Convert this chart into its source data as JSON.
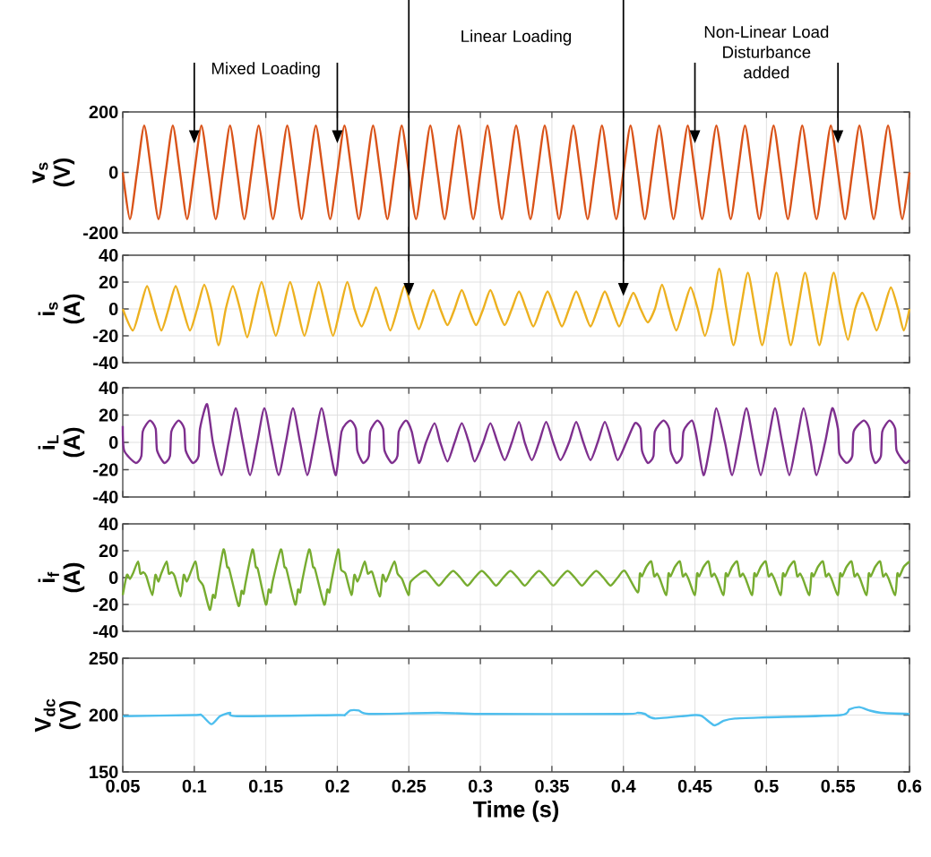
{
  "chart_data": [
    {
      "type": "line",
      "ylabel": "v$_{s}$ (V)",
      "xlim": [
        0.05,
        0.6
      ],
      "ylim": [
        -200,
        200
      ],
      "yticks": [
        -200,
        0,
        200
      ],
      "xticks": [
        0.05,
        0.1,
        0.15,
        0.2,
        0.25,
        0.3,
        0.35,
        0.4,
        0.45,
        0.5,
        0.55,
        0.6
      ],
      "grid": true,
      "tick_labels": "y",
      "series": [
        {
          "color": "#d95319",
          "x": [
            0.05,
            0.055,
            0.06,
            0.065,
            0.07,
            0.075,
            0.08,
            0.085,
            0.09,
            0.095,
            0.1,
            0.105,
            0.11,
            0.115,
            0.12,
            0.125,
            0.13,
            0.135,
            0.14,
            0.145,
            0.15,
            0.155,
            0.16,
            0.165,
            0.17,
            0.175,
            0.18,
            0.185,
            0.19,
            0.195,
            0.2,
            0.205,
            0.21,
            0.215,
            0.22,
            0.225,
            0.23,
            0.235,
            0.24,
            0.245,
            0.25,
            0.255,
            0.26,
            0.265,
            0.27,
            0.275,
            0.28,
            0.285,
            0.29,
            0.295,
            0.3,
            0.305,
            0.31,
            0.315,
            0.32,
            0.325,
            0.33,
            0.335,
            0.34,
            0.345,
            0.35,
            0.355,
            0.36,
            0.365,
            0.37,
            0.375,
            0.38,
            0.385,
            0.39,
            0.395,
            0.4,
            0.405,
            0.41,
            0.415,
            0.42,
            0.425,
            0.43,
            0.435,
            0.44,
            0.445,
            0.45,
            0.455,
            0.46,
            0.465,
            0.47,
            0.475,
            0.48,
            0.485,
            0.49,
            0.495,
            0.5,
            0.505,
            0.51,
            0.515,
            0.52,
            0.525,
            0.53,
            0.535,
            0.54,
            0.545,
            0.55,
            0.555,
            0.56,
            0.565,
            0.57,
            0.575,
            0.58,
            0.585,
            0.59,
            0.595,
            0.6
          ],
          "values": [
            0,
            -155,
            0,
            155,
            0,
            -155,
            0,
            155,
            0,
            -155,
            0,
            155,
            0,
            -155,
            0,
            155,
            0,
            -155,
            0,
            155,
            0,
            -155,
            0,
            155,
            0,
            -155,
            0,
            155,
            0,
            -155,
            0,
            155,
            0,
            -155,
            0,
            155,
            0,
            -155,
            0,
            155,
            0,
            -155,
            0,
            155,
            0,
            -155,
            0,
            155,
            0,
            -155,
            0,
            155,
            0,
            -155,
            0,
            155,
            0,
            -155,
            0,
            155,
            0,
            -155,
            0,
            155,
            0,
            -155,
            0,
            155,
            0,
            -155,
            0,
            155,
            0,
            -155,
            0,
            155,
            0,
            -155,
            0,
            155,
            0,
            -155,
            0,
            155,
            0,
            -155,
            0,
            155,
            0,
            -155,
            0,
            155,
            0,
            -155,
            0,
            155,
            0,
            -155,
            0,
            155,
            0,
            -155,
            0,
            155,
            0,
            -155,
            0,
            155,
            0,
            -155,
            0
          ]
        }
      ],
      "ref_lines": [
        {
          "axis": "x",
          "value": 0.1
        },
        {
          "axis": "x",
          "value": 0.2
        },
        {
          "axis": "x",
          "value": 0.45
        },
        {
          "axis": "x",
          "value": 0.55
        }
      ],
      "annotations": [
        "Mixed Loading",
        "Non-Linear Load Disturbance added"
      ]
    },
    {
      "type": "line",
      "ylabel": "i$_{s}$ (A)",
      "xlim": [
        0.05,
        0.6
      ],
      "ylim": [
        -40,
        40
      ],
      "yticks": [
        -40,
        -20,
        0,
        20,
        40
      ],
      "xticks": [
        0.05,
        0.1,
        0.15,
        0.2,
        0.25,
        0.3,
        0.35,
        0.4,
        0.45,
        0.5,
        0.55,
        0.6
      ],
      "grid": true,
      "tick_labels": "y",
      "series": [
        {
          "color": "#edb120",
          "x": [
            0.05,
            0.057,
            0.062,
            0.067,
            0.072,
            0.077,
            0.082,
            0.087,
            0.092,
            0.097,
            0.102,
            0.107,
            0.112,
            0.117,
            0.122,
            0.127,
            0.132,
            0.137,
            0.142,
            0.147,
            0.152,
            0.157,
            0.162,
            0.167,
            0.172,
            0.177,
            0.182,
            0.187,
            0.192,
            0.197,
            0.202,
            0.207,
            0.212,
            0.217,
            0.222,
            0.227,
            0.232,
            0.237,
            0.242,
            0.247,
            0.252,
            0.257,
            0.262,
            0.267,
            0.272,
            0.277,
            0.282,
            0.287,
            0.292,
            0.297,
            0.302,
            0.307,
            0.312,
            0.317,
            0.322,
            0.327,
            0.332,
            0.337,
            0.342,
            0.347,
            0.352,
            0.357,
            0.362,
            0.367,
            0.372,
            0.377,
            0.382,
            0.387,
            0.392,
            0.397,
            0.402,
            0.407,
            0.412,
            0.417,
            0.422,
            0.427,
            0.432,
            0.437,
            0.442,
            0.447,
            0.452,
            0.457,
            0.462,
            0.467,
            0.472,
            0.477,
            0.482,
            0.487,
            0.492,
            0.497,
            0.502,
            0.507,
            0.512,
            0.517,
            0.522,
            0.527,
            0.532,
            0.537,
            0.542,
            0.547,
            0.552,
            0.557,
            0.562,
            0.567,
            0.572,
            0.577,
            0.582,
            0.587,
            0.592,
            0.596,
            0.6
          ],
          "values": [
            0,
            -16,
            0,
            17,
            0,
            -16,
            0,
            17,
            0,
            -16,
            0,
            18,
            0,
            -27,
            0,
            17,
            0,
            -21,
            0,
            20,
            0,
            -20,
            0,
            20,
            0,
            -20,
            0,
            20,
            0,
            -20,
            0,
            20,
            0,
            -13,
            0,
            16,
            0,
            -16,
            0,
            17,
            0,
            -15,
            0,
            14,
            0,
            -12,
            0,
            14,
            0,
            -12,
            0,
            14,
            0,
            -12,
            0,
            13,
            0,
            -13,
            0,
            13,
            0,
            -13,
            0,
            13,
            0,
            -13,
            0,
            13,
            0,
            -13,
            0,
            12,
            0,
            -10,
            0,
            18,
            0,
            -16,
            0,
            16,
            0,
            -20,
            0,
            30,
            0,
            -27,
            0,
            27,
            0,
            -27,
            0,
            27,
            0,
            -27,
            0,
            27,
            0,
            -27,
            0,
            27,
            0,
            -23,
            0,
            12,
            0,
            -16,
            0,
            16,
            0,
            -16,
            0
          ]
        }
      ],
      "ref_lines": [
        {
          "axis": "x",
          "value": 0.25
        },
        {
          "axis": "x",
          "value": 0.4
        }
      ],
      "annotations": [
        "Linear Loading"
      ]
    },
    {
      "type": "line",
      "ylabel": "i$_{L}$ (A)",
      "xlim": [
        0.05,
        0.6
      ],
      "ylim": [
        -40,
        40
      ],
      "yticks": [
        -40,
        -20,
        0,
        20,
        40
      ],
      "xticks": [
        0.05,
        0.1,
        0.15,
        0.2,
        0.25,
        0.3,
        0.35,
        0.4,
        0.45,
        0.5,
        0.55,
        0.6
      ],
      "grid": true,
      "tick_labels": "y",
      "series": [
        {
          "color": "#7e2f8e",
          "x": [
            0.05,
            0.051,
            0.059,
            0.063,
            0.064,
            0.069,
            0.073,
            0.074,
            0.079,
            0.083,
            0.084,
            0.089,
            0.093,
            0.094,
            0.099,
            0.103,
            0.104,
            0.109,
            0.113,
            0.119,
            0.124,
            0.129,
            0.134,
            0.139,
            0.144,
            0.149,
            0.154,
            0.159,
            0.164,
            0.169,
            0.174,
            0.179,
            0.184,
            0.189,
            0.194,
            0.199,
            0.203,
            0.209,
            0.213,
            0.214,
            0.218,
            0.222,
            0.223,
            0.228,
            0.232,
            0.233,
            0.238,
            0.242,
            0.243,
            0.248,
            0.252,
            0.257,
            0.262,
            0.268,
            0.272,
            0.277,
            0.282,
            0.287,
            0.292,
            0.296,
            0.302,
            0.307,
            0.312,
            0.317,
            0.322,
            0.327,
            0.331,
            0.336,
            0.341,
            0.346,
            0.351,
            0.356,
            0.362,
            0.367,
            0.372,
            0.377,
            0.382,
            0.387,
            0.392,
            0.396,
            0.402,
            0.408,
            0.412,
            0.413,
            0.417,
            0.421,
            0.422,
            0.428,
            0.432,
            0.433,
            0.437,
            0.441,
            0.442,
            0.448,
            0.451,
            0.456,
            0.461,
            0.465,
            0.471,
            0.476,
            0.481,
            0.486,
            0.491,
            0.496,
            0.501,
            0.506,
            0.511,
            0.516,
            0.521,
            0.526,
            0.531,
            0.535,
            0.541,
            0.546,
            0.55,
            0.551,
            0.556,
            0.56,
            0.561,
            0.568,
            0.572,
            0.573,
            0.576,
            0.58,
            0.581,
            0.586,
            0.59,
            0.591,
            0.597,
            0.6
          ],
          "values": [
            12,
            -6,
            -15,
            -10,
            8,
            16,
            10,
            -6,
            -15,
            -10,
            8,
            16,
            10,
            -6,
            -15,
            -10,
            10,
            28,
            0,
            -24,
            0,
            25,
            0,
            -24,
            0,
            25,
            0,
            -24,
            0,
            25,
            0,
            -24,
            0,
            25,
            0,
            -24,
            8,
            16,
            10,
            -6,
            -15,
            -10,
            8,
            16,
            10,
            -6,
            -15,
            -10,
            8,
            16,
            8,
            -15,
            0,
            14,
            0,
            -14,
            0,
            14,
            0,
            -14,
            0,
            14,
            0,
            -13,
            0,
            15,
            0,
            -13,
            0,
            15,
            0,
            -13,
            0,
            15,
            0,
            -13,
            0,
            15,
            0,
            -13,
            0,
            14,
            10,
            -6,
            -15,
            -10,
            8,
            16,
            10,
            -6,
            -15,
            -10,
            8,
            16,
            5,
            -24,
            0,
            25,
            0,
            -24,
            0,
            25,
            0,
            -24,
            0,
            25,
            0,
            -24,
            0,
            25,
            0,
            -24,
            0,
            25,
            10,
            -8,
            -15,
            -10,
            8,
            16,
            10,
            -6,
            -15,
            -10,
            8,
            16,
            10,
            -6,
            -15,
            -13
          ]
        }
      ]
    },
    {
      "type": "line",
      "ylabel": "i$_{f}$ (A)",
      "xlim": [
        0.05,
        0.6
      ],
      "ylim": [
        -40,
        40
      ],
      "yticks": [
        -40,
        -20,
        0,
        20,
        40
      ],
      "xticks": [
        0.05,
        0.1,
        0.15,
        0.2,
        0.25,
        0.3,
        0.35,
        0.4,
        0.45,
        0.5,
        0.55,
        0.6
      ],
      "grid": true,
      "tick_labels": "y",
      "series": [
        {
          "color": "#77ac30",
          "x": [
            0.05,
            0.0529,
            0.055,
            0.0571,
            0.0607,
            0.0623,
            0.0644,
            0.0665,
            0.0707,
            0.0728,
            0.0749,
            0.0769,
            0.0807,
            0.0822,
            0.0842,
            0.0863,
            0.0905,
            0.0926,
            0.0947,
            0.0968,
            0.1009,
            0.103,
            0.1062,
            0.1108,
            0.113,
            0.1145,
            0.116,
            0.1204,
            0.123,
            0.1245,
            0.1309,
            0.133,
            0.1345,
            0.136,
            0.1407,
            0.143,
            0.1445,
            0.15,
            0.152,
            0.1535,
            0.155,
            0.1605,
            0.163,
            0.1645,
            0.1705,
            0.1725,
            0.174,
            0.1755,
            0.1803,
            0.183,
            0.1845,
            0.1908,
            0.193,
            0.1945,
            0.196,
            0.2006,
            0.2026,
            0.2057,
            0.2099,
            0.2119,
            0.214,
            0.216,
            0.2192,
            0.2213,
            0.2244,
            0.2296,
            0.2317,
            0.2338,
            0.2359,
            0.24,
            0.2421,
            0.2452,
            0.2498,
            0.2513,
            0.261,
            0.266,
            0.271,
            0.276,
            0.281,
            0.286,
            0.291,
            0.296,
            0.301,
            0.306,
            0.311,
            0.316,
            0.321,
            0.326,
            0.331,
            0.336,
            0.341,
            0.346,
            0.351,
            0.356,
            0.361,
            0.366,
            0.371,
            0.376,
            0.381,
            0.386,
            0.391,
            0.396,
            0.401,
            0.41,
            0.4115,
            0.413,
            0.416,
            0.4195,
            0.4215,
            0.4235,
            0.4255,
            0.43,
            0.4315,
            0.433,
            0.436,
            0.4395,
            0.4415,
            0.4435,
            0.4455,
            0.45,
            0.4515,
            0.453,
            0.456,
            0.4595,
            0.4615,
            0.4635,
            0.4655,
            0.47,
            0.4715,
            0.473,
            0.476,
            0.4795,
            0.4815,
            0.4835,
            0.4855,
            0.49,
            0.4915,
            0.493,
            0.496,
            0.4995,
            0.5015,
            0.5035,
            0.5055,
            0.51,
            0.5115,
            0.513,
            0.516,
            0.5195,
            0.5215,
            0.5235,
            0.5255,
            0.53,
            0.5315,
            0.533,
            0.536,
            0.5395,
            0.5415,
            0.5435,
            0.5455,
            0.55,
            0.5515,
            0.553,
            0.556,
            0.5595,
            0.5615,
            0.5635,
            0.5655,
            0.57,
            0.5715,
            0.573,
            0.576,
            0.5795,
            0.5815,
            0.5835,
            0.5855,
            0.59,
            0.5915,
            0.593,
            0.596,
            0.6
          ],
          "values": [
            -13,
            2,
            -1,
            3,
            12,
            3,
            4,
            1,
            -13,
            2,
            -3,
            3,
            12,
            3,
            4,
            1,
            -14,
            2,
            -3,
            2,
            12,
            -1,
            -6,
            -24,
            -13,
            -15,
            -5,
            21,
            8,
            6,
            -21,
            -10,
            -12,
            -3,
            21,
            8,
            6,
            -20,
            -9,
            -11,
            -2,
            21,
            8,
            6,
            -20,
            -9,
            -11,
            -2,
            21,
            8,
            6,
            -20,
            -9,
            -11,
            -2,
            21,
            6,
            3,
            -13,
            2,
            -3,
            2,
            12,
            3,
            4,
            -14,
            2,
            -3,
            2,
            12,
            3,
            -1,
            -13,
            -3,
            5,
            0,
            -6,
            0,
            5,
            0,
            -6,
            0,
            5,
            0,
            -6,
            0,
            5,
            0,
            -6,
            0,
            5,
            0,
            -6,
            0,
            5,
            0,
            -6,
            0,
            5,
            0,
            -6,
            0,
            5,
            -11,
            3,
            1,
            8,
            12,
            1,
            3,
            -1,
            -13,
            3,
            1,
            8,
            12,
            1,
            3,
            -1,
            -13,
            3,
            1,
            8,
            12,
            1,
            3,
            -1,
            -13,
            3,
            1,
            8,
            12,
            1,
            3,
            -1,
            -13,
            3,
            1,
            8,
            12,
            1,
            3,
            -1,
            -13,
            3,
            1,
            8,
            12,
            1,
            3,
            -1,
            -13,
            3,
            1,
            8,
            12,
            1,
            3,
            -1,
            -13,
            3,
            1,
            8,
            12,
            1,
            3,
            -1,
            -13,
            3,
            1,
            8,
            12,
            1,
            3,
            -1,
            -13,
            3,
            1,
            8,
            12
          ]
        }
      ]
    },
    {
      "type": "line",
      "ylabel": "V$_{dc}$ (V)",
      "xlabel": "Time (s)",
      "xlim": [
        0.05,
        0.6
      ],
      "ylim": [
        150,
        250
      ],
      "yticks": [
        150,
        200,
        250
      ],
      "xticks": [
        0.05,
        0.1,
        0.15,
        0.2,
        0.25,
        0.3,
        0.35,
        0.4,
        0.45,
        0.5,
        0.55,
        0.6
      ],
      "grid": true,
      "series": [
        {
          "color": "#4dbeee",
          "x": [
            0.05,
            0.1,
            0.105,
            0.112,
            0.118,
            0.125,
            0.13,
            0.2,
            0.205,
            0.209,
            0.215,
            0.222,
            0.27,
            0.3,
            0.4,
            0.41,
            0.415,
            0.422,
            0.45,
            0.455,
            0.4635,
            0.47,
            0.478,
            0.5,
            0.552,
            0.558,
            0.565,
            0.572,
            0.58,
            0.6
          ],
          "values": [
            199,
            200,
            200,
            192,
            199,
            202,
            199,
            200,
            200,
            204,
            204,
            201,
            202,
            201,
            201,
            202,
            201,
            197,
            200,
            199,
            191,
            195,
            197,
            198,
            200,
            205,
            207,
            204,
            202,
            201
          ]
        }
      ]
    }
  ]
}
